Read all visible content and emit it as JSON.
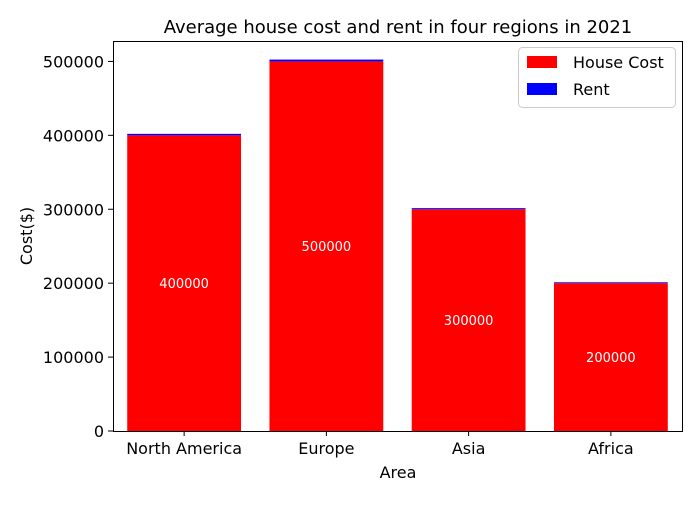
{
  "chart_data": {
    "type": "bar",
    "stacked": true,
    "title": "Average house cost and rent in four regions in 2021",
    "xlabel": "Area",
    "ylabel": "Cost($)",
    "categories": [
      "North America",
      "Europe",
      "Asia",
      "Africa"
    ],
    "series": [
      {
        "name": "House Cost",
        "values": [
          400000,
          500000,
          300000,
          200000
        ],
        "color": "#ff0000",
        "show_labels": true
      },
      {
        "name": "Rent",
        "values": [
          2000,
          2500,
          1500,
          1200
        ],
        "color": "#0000ff",
        "show_labels": false
      }
    ],
    "ylim": [
      0,
      527625
    ],
    "yticks": [
      0,
      100000,
      200000,
      300000,
      400000,
      500000
    ],
    "ytick_labels": [
      "0",
      "100000",
      "200000",
      "300000",
      "400000",
      "500000"
    ],
    "legend_position": "top-right",
    "grid": false,
    "label_color": "#ffffff"
  }
}
